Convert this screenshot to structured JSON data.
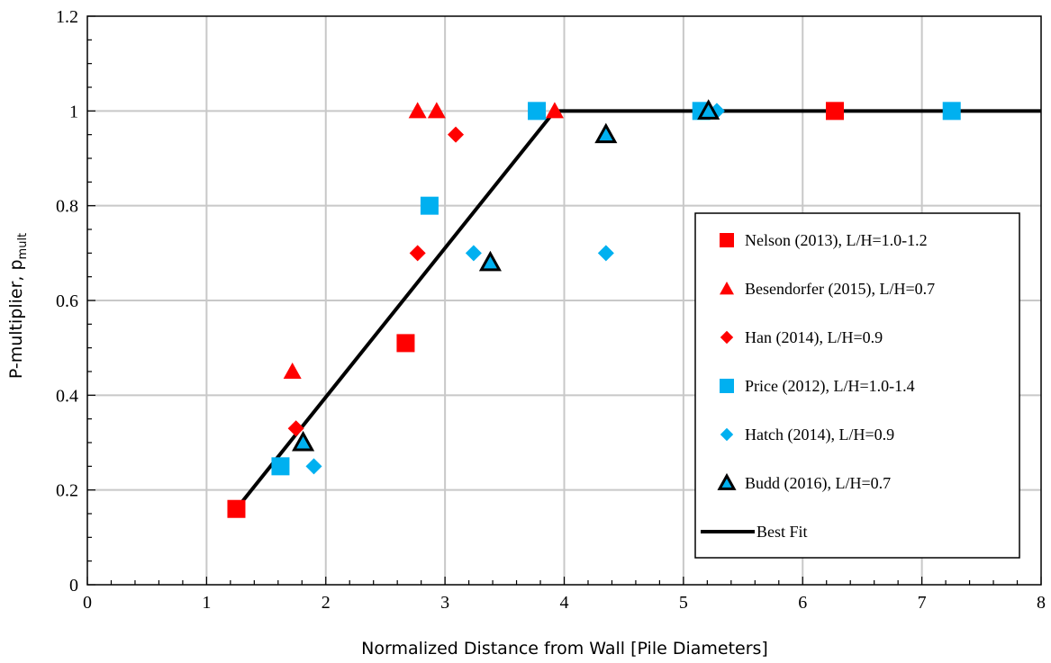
{
  "chart_data": {
    "type": "scatter",
    "title": "",
    "xlabel": "Normalized Distance from Wall [Pile Diameters]",
    "ylabel": "P-multiplier, p",
    "ylabel_subscript": "mult",
    "xlim": [
      0,
      8
    ],
    "ylim": [
      0,
      1.2
    ],
    "xticks": [
      "0",
      "1",
      "2",
      "3",
      "4",
      "5",
      "6",
      "7",
      "8"
    ],
    "yticks": [
      "0",
      "0.2",
      "0.4",
      "0.6",
      "0.8",
      "1",
      "1.2"
    ],
    "grid": true,
    "legend_position": "right",
    "series": [
      {
        "name": "Nelson (2013), L/H=1.0-1.2",
        "marker": "square",
        "color": "#ff0000",
        "points": [
          [
            1.25,
            0.16
          ],
          [
            2.67,
            0.51
          ],
          [
            6.27,
            1.0
          ]
        ]
      },
      {
        "name": "Besendorfer (2015), L/H=0.7",
        "marker": "triangle",
        "color": "#ff0000",
        "points": [
          [
            1.72,
            0.45
          ],
          [
            2.77,
            1.0
          ],
          [
            2.93,
            1.0
          ],
          [
            3.92,
            1.0
          ]
        ]
      },
      {
        "name": "Han (2014), L/H=0.9",
        "marker": "diamond",
        "color": "#ff0000",
        "points": [
          [
            1.75,
            0.33
          ],
          [
            2.77,
            0.7
          ],
          [
            3.09,
            0.95
          ]
        ]
      },
      {
        "name": "Price (2012), L/H=1.0-1.4",
        "marker": "square",
        "color": "#00b0f0",
        "points": [
          [
            1.62,
            0.25
          ],
          [
            2.87,
            0.8
          ],
          [
            3.77,
            1.0
          ],
          [
            5.15,
            1.0
          ],
          [
            7.25,
            1.0
          ]
        ]
      },
      {
        "name": "Hatch (2014), L/H=0.9",
        "marker": "diamond",
        "color": "#00b0f0",
        "points": [
          [
            1.9,
            0.25
          ],
          [
            3.24,
            0.7
          ],
          [
            4.35,
            0.7
          ],
          [
            5.28,
            1.0
          ]
        ]
      },
      {
        "name": "Budd (2016), L/H=0.7",
        "marker": "triangle-outline",
        "color": "#00b0f0",
        "points": [
          [
            1.81,
            0.3
          ],
          [
            3.38,
            0.68
          ],
          [
            4.35,
            0.95
          ],
          [
            5.21,
            1.0
          ]
        ]
      },
      {
        "name": "Best Fit",
        "marker": "line",
        "color": "#000000",
        "points": [
          [
            1.25,
            0.16
          ],
          [
            3.92,
            1.0
          ],
          [
            8.0,
            1.0
          ]
        ]
      }
    ]
  }
}
